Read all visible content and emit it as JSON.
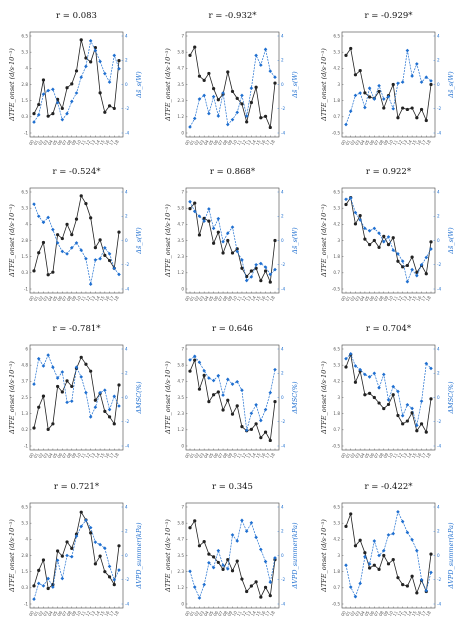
{
  "chart_data": [
    {
      "type": "line",
      "title": "r = 0.083",
      "ylabel_left": "ΔTFE_onset (d/s·10⁻³)",
      "ylabel_right": "Δs̄_s(W)",
      "x": [
        "00",
        "01",
        "02",
        "03",
        "04",
        "05",
        "06",
        "07",
        "08",
        "09",
        "10",
        "11",
        "12",
        "13",
        "14",
        "15",
        "16",
        "17",
        "18"
      ],
      "series": [
        {
          "color": "#222222",
          "values": [
            0.5,
            1.2,
            3.1,
            0.3,
            0.5,
            1.6,
            0.9,
            2.5,
            2.8,
            3.8,
            6.2,
            4.8,
            4.5,
            5.6,
            2.1,
            0.6,
            1.1,
            0.9,
            4.6
          ]
        },
        {
          "color": "#1f6fd0",
          "values": [
            -3.1,
            -2.5,
            -0.8,
            -0.5,
            -0.4,
            -1.5,
            -2.9,
            -2.4,
            -1.4,
            -0.7,
            0.6,
            1.5,
            3.6,
            2.8,
            1.9,
            0.9,
            0.2,
            2.4,
            1.3
          ]
        }
      ],
      "ylim_left": [
        -1,
        6.5
      ],
      "ylim_right": [
        -4,
        4
      ]
    },
    {
      "type": "line",
      "title": "r = -0.932*",
      "ylabel_left": "ΔTFE_onset (d/s·10⁻³)",
      "ylabel_right": "Δs̄_s(W)",
      "x": [
        "00",
        "01",
        "02",
        "03",
        "04",
        "05",
        "06",
        "07",
        "08",
        "09",
        "10",
        "11",
        "12",
        "13",
        "14",
        "15",
        "16",
        "17",
        "18"
      ],
      "series": [
        {
          "color": "#222222",
          "values": [
            5.6,
            6.2,
            4.1,
            3.8,
            4.3,
            3.2,
            2.4,
            2.8,
            4.4,
            3.0,
            2.5,
            2.1,
            0.8,
            2.2,
            3.3,
            1.1,
            1.2,
            0.4,
            3.6
          ]
        },
        {
          "color": "#1f6fd0",
          "values": [
            -3.5,
            -2.8,
            -1.2,
            -0.9,
            -2.4,
            -1.0,
            -2.6,
            -0.7,
            -3.3,
            -2.9,
            -2.3,
            -0.9,
            -2.6,
            -0.3,
            2.4,
            1.6,
            2.9,
            1.1,
            0.6
          ]
        }
      ],
      "ylim_left": [
        0,
        7
      ],
      "ylim_right": [
        -4,
        4
      ]
    },
    {
      "type": "line",
      "title": "r = -0.929*",
      "ylabel_left": "ΔTFE_onset (d/s·10⁻³)",
      "ylabel_right": "Δs̄_s(W)",
      "x": [
        "00",
        "01",
        "02",
        "03",
        "04",
        "05",
        "06",
        "07",
        "08",
        "09",
        "10",
        "11",
        "12",
        "13",
        "14",
        "15",
        "16",
        "17",
        "18"
      ],
      "series": [
        {
          "color": "#222222",
          "values": [
            5.1,
            5.6,
            3.7,
            4.0,
            2.4,
            2.1,
            2.0,
            2.5,
            1.3,
            2.2,
            3.0,
            0.6,
            1.3,
            1.2,
            1.3,
            0.6,
            1.2,
            0.4,
            3.0
          ]
        },
        {
          "color": "#1f6fd0",
          "values": [
            -3.3,
            -2.2,
            -0.9,
            -0.7,
            -1.9,
            -0.3,
            -1.2,
            -0.1,
            -1.2,
            -1.0,
            -2.0,
            0.1,
            0.2,
            2.8,
            0.7,
            1.7,
            0.2,
            0.6,
            0.3
          ]
        }
      ],
      "ylim_left": [
        -0.5,
        6.5
      ],
      "ylim_right": [
        -4,
        4
      ]
    },
    {
      "type": "line",
      "title": "r = -0.524*",
      "ylabel_left": "ΔTFE_onset (d/s·10⁻³)",
      "ylabel_right": "Δs̄_s(W)",
      "x": [
        "00",
        "01",
        "02",
        "03",
        "04",
        "05",
        "06",
        "07",
        "08",
        "09",
        "10",
        "11",
        "12",
        "13",
        "14",
        "15",
        "16",
        "17",
        "18"
      ],
      "series": [
        {
          "color": "#222222",
          "values": [
            0.4,
            1.8,
            2.6,
            0.1,
            0.3,
            3.2,
            2.9,
            4.0,
            3.2,
            4.4,
            6.2,
            5.6,
            4.5,
            2.2,
            2.8,
            1.6,
            1.2,
            0.6,
            3.4
          ]
        },
        {
          "color": "#1f6fd0",
          "values": [
            3.0,
            2.0,
            1.5,
            1.9,
            0.9,
            -0.2,
            -0.9,
            -1.1,
            -0.6,
            -0.2,
            -0.8,
            -1.5,
            -3.6,
            -1.6,
            -1.5,
            -0.6,
            -1.1,
            -2.3,
            -2.8
          ]
        }
      ],
      "ylim_left": [
        -1,
        6.5
      ],
      "ylim_right": [
        -4,
        4
      ]
    },
    {
      "type": "line",
      "title": "r = 0.868*",
      "ylabel_left": "ΔTFE_onset (d/s·10⁻³)",
      "ylabel_right": "Δs̄_s(W)",
      "x": [
        "00",
        "01",
        "02",
        "03",
        "04",
        "05",
        "06",
        "07",
        "08",
        "09",
        "10",
        "11",
        "12",
        "13",
        "14",
        "15",
        "16",
        "17",
        "18"
      ],
      "series": [
        {
          "color": "#222222",
          "values": [
            5.8,
            6.2,
            3.9,
            5.1,
            4.9,
            3.3,
            4.1,
            2.6,
            3.5,
            2.6,
            2.9,
            1.5,
            0.9,
            1.3,
            1.5,
            0.6,
            1.3,
            0.5,
            3.5
          ]
        },
        {
          "color": "#1f6fd0",
          "values": [
            3.2,
            2.4,
            2.0,
            1.6,
            2.6,
            1.0,
            1.8,
            -0.1,
            0.6,
            1.1,
            -0.9,
            -1.6,
            -3.3,
            -3.0,
            -2.0,
            -1.9,
            -2.2,
            -2.8,
            -2.4
          ]
        }
      ],
      "ylim_left": [
        0,
        7
      ],
      "ylim_right": [
        -4,
        4
      ]
    },
    {
      "type": "line",
      "title": "r = 0.922*",
      "ylabel_left": "ΔTFE_onset (d/s·10⁻³)",
      "ylabel_right": "Δs̄_s(W)",
      "x": [
        "00",
        "01",
        "02",
        "03",
        "04",
        "05",
        "06",
        "07",
        "08",
        "09",
        "10",
        "11",
        "12",
        "13",
        "14",
        "15",
        "16",
        "17",
        "18"
      ],
      "series": [
        {
          "color": "#222222",
          "values": [
            5.6,
            6.1,
            4.2,
            4.8,
            3.1,
            2.7,
            3.0,
            2.5,
            3.3,
            2.7,
            3.2,
            1.5,
            1.1,
            1.2,
            1.8,
            0.7,
            1.2,
            0.6,
            2.9
          ]
        },
        {
          "color": "#1f6fd0",
          "values": [
            3.4,
            3.5,
            2.3,
            1.7,
            1.0,
            0.8,
            1.0,
            0.6,
            -0.1,
            0.3,
            -0.8,
            -1.1,
            -1.7,
            -3.4,
            -2.4,
            -2.9,
            -2.0,
            -1.4,
            -0.7
          ]
        }
      ],
      "ylim_left": [
        -0.5,
        6.5
      ],
      "ylim_right": [
        -4,
        4
      ]
    },
    {
      "type": "line",
      "title": "r = -0.781*",
      "ylabel_left": "ΔTFE_onset (d/s·10⁻³)",
      "ylabel_right": "ΔMSC(%)",
      "x": [
        "00",
        "01",
        "02",
        "03",
        "04",
        "05",
        "06",
        "07",
        "08",
        "09",
        "10",
        "11",
        "12",
        "13",
        "14",
        "15",
        "16",
        "17",
        "18"
      ],
      "series": [
        {
          "color": "#222222",
          "values": [
            0.3,
            1.8,
            2.6,
            0.2,
            0.6,
            3.3,
            2.9,
            3.7,
            3.3,
            4.6,
            5.4,
            4.9,
            4.4,
            2.3,
            2.8,
            1.5,
            1.1,
            0.6,
            3.4
          ]
        },
        {
          "color": "#1f6fd0",
          "values": [
            1.1,
            3.2,
            2.6,
            3.5,
            2.5,
            1.6,
            2.1,
            -0.4,
            -0.3,
            2.5,
            1.7,
            0.4,
            -1.6,
            -0.8,
            0.4,
            0.6,
            -1.0,
            0.1,
            -0.7
          ]
        }
      ],
      "ylim_left": [
        -1,
        6
      ],
      "ylim_right": [
        -4,
        4
      ]
    },
    {
      "type": "line",
      "title": "r = 0.646",
      "ylabel_left": "ΔTFE_onset (d/s·10⁻³)",
      "ylabel_right": "ΔMSC(%)",
      "x": [
        "00",
        "01",
        "02",
        "03",
        "04",
        "05",
        "06",
        "07",
        "08",
        "09",
        "10",
        "11",
        "12",
        "13",
        "14",
        "15",
        "16",
        "17",
        "18"
      ],
      "series": [
        {
          "color": "#222222",
          "values": [
            5.4,
            6.2,
            4.1,
            5.1,
            3.2,
            3.7,
            3.9,
            2.6,
            3.3,
            2.3,
            2.9,
            1.4,
            1.1,
            1.2,
            1.6,
            0.6,
            1.0,
            0.4,
            3.2
          ]
        },
        {
          "color": "#1f6fd0",
          "values": [
            3.1,
            3.4,
            2.9,
            2.2,
            1.6,
            1.4,
            1.8,
            0.2,
            1.5,
            1.1,
            1.3,
            0.6,
            -2.7,
            -1.3,
            -0.6,
            -1.9,
            -1.0,
            0.4,
            2.3
          ]
        }
      ],
      "ylim_left": [
        0,
        7
      ],
      "ylim_right": [
        -4,
        4
      ]
    },
    {
      "type": "line",
      "title": "r = 0.704*",
      "ylabel_left": "ΔTFE_onset (d/s·10⁻³)",
      "ylabel_right": "ΔMSC(%)",
      "x": [
        "00",
        "01",
        "02",
        "03",
        "04",
        "05",
        "06",
        "07",
        "08",
        "09",
        "10",
        "11",
        "12",
        "13",
        "14",
        "15",
        "16",
        "17",
        "18"
      ],
      "series": [
        {
          "color": "#222222",
          "values": [
            5.2,
            6.1,
            4.1,
            4.9,
            3.2,
            3.3,
            3.0,
            2.6,
            2.2,
            2.5,
            3.2,
            1.7,
            1.1,
            1.3,
            1.9,
            0.6,
            1.1,
            0.5,
            2.9
          ]
        },
        {
          "color": "#1f6fd0",
          "values": [
            3.2,
            3.6,
            2.6,
            2.3,
            1.9,
            1.7,
            2.0,
            0.8,
            1.9,
            -0.2,
            0.9,
            0.5,
            -1.5,
            -0.6,
            -0.9,
            -2.3,
            -0.3,
            2.8,
            2.4
          ]
        }
      ],
      "ylim_left": [
        -0.5,
        6.5
      ],
      "ylim_right": [
        -4,
        4
      ]
    },
    {
      "type": "line",
      "title": "r = 0.721*",
      "ylabel_left": "ΔTFE_onset (d/s·10⁻³)",
      "ylabel_right": "ΔVPD_summer(kPa)",
      "x": [
        "00",
        "01",
        "02",
        "03",
        "04",
        "05",
        "06",
        "07",
        "08",
        "09",
        "10",
        "11",
        "12",
        "13",
        "14",
        "15",
        "16",
        "17",
        "18"
      ],
      "series": [
        {
          "color": "#222222",
          "values": [
            0.4,
            1.6,
            2.4,
            0.2,
            0.5,
            3.1,
            2.7,
            3.8,
            3.3,
            4.4,
            6.1,
            5.5,
            4.5,
            2.1,
            2.7,
            1.5,
            1.1,
            0.5,
            3.5
          ]
        },
        {
          "color": "#1f6fd0",
          "values": [
            -3.6,
            -2.3,
            -2.5,
            -1.9,
            -2.6,
            -0.4,
            -1.9,
            0.0,
            -0.1,
            1.6,
            2.4,
            2.9,
            2.3,
            1.1,
            0.9,
            0.6,
            -0.9,
            -2.0,
            -1.2
          ]
        }
      ],
      "ylim_left": [
        -1,
        6.5
      ],
      "ylim_right": [
        -4,
        4
      ]
    },
    {
      "type": "line",
      "title": "r = 0.345",
      "ylabel_left": "ΔTFE_onset (d/s·10⁻³)",
      "ylabel_right": "ΔVPD_summer(kPa)",
      "x": [
        "00",
        "01",
        "02",
        "03",
        "04",
        "05",
        "06",
        "07",
        "08",
        "09",
        "10",
        "11",
        "12",
        "13",
        "14",
        "15",
        "16",
        "17",
        "18"
      ],
      "series": [
        {
          "color": "#222222",
          "values": [
            5.5,
            6.0,
            4.2,
            4.5,
            3.6,
            3.4,
            3.0,
            2.5,
            3.2,
            2.4,
            3.1,
            1.8,
            0.9,
            1.3,
            1.6,
            0.5,
            1.2,
            0.6,
            3.2
          ]
        },
        {
          "color": "#1f6fd0",
          "values": [
            -1.3,
            -2.6,
            -3.5,
            -2.4,
            -0.6,
            -1.0,
            0.4,
            -0.8,
            -1.1,
            1.7,
            1.2,
            2.9,
            2.0,
            2.7,
            1.5,
            0.5,
            -0.5,
            -2.2,
            -0.2
          ]
        }
      ],
      "ylim_left": [
        0,
        7
      ],
      "ylim_right": [
        -4,
        4
      ]
    },
    {
      "type": "line",
      "title": "r = -0.422*",
      "ylabel_left": "ΔTFE_onset (d/s·10⁻³)",
      "ylabel_right": "ΔVPD_summer(kPa)",
      "x": [
        "00",
        "01",
        "02",
        "03",
        "04",
        "05",
        "06",
        "07",
        "08",
        "09",
        "10",
        "11",
        "12",
        "13",
        "14",
        "15",
        "16",
        "17",
        "18"
      ],
      "series": [
        {
          "color": "#222222",
          "values": [
            5.1,
            6.0,
            3.7,
            4.1,
            3.2,
            2.1,
            2.3,
            2.0,
            3.0,
            2.4,
            2.7,
            1.4,
            0.9,
            0.8,
            1.5,
            0.3,
            1.2,
            0.4,
            3.1
          ]
        },
        {
          "color": "#1f6fd0",
          "values": [
            -0.8,
            -2.6,
            -3.4,
            -2.3,
            -0.1,
            -0.7,
            1.2,
            0.0,
            0.4,
            1.7,
            1.8,
            3.6,
            2.8,
            1.9,
            1.3,
            0.4,
            -2.0,
            -2.9,
            -1.4
          ]
        }
      ],
      "ylim_left": [
        -0.5,
        6.5
      ],
      "ylim_right": [
        -4,
        4
      ]
    }
  ]
}
